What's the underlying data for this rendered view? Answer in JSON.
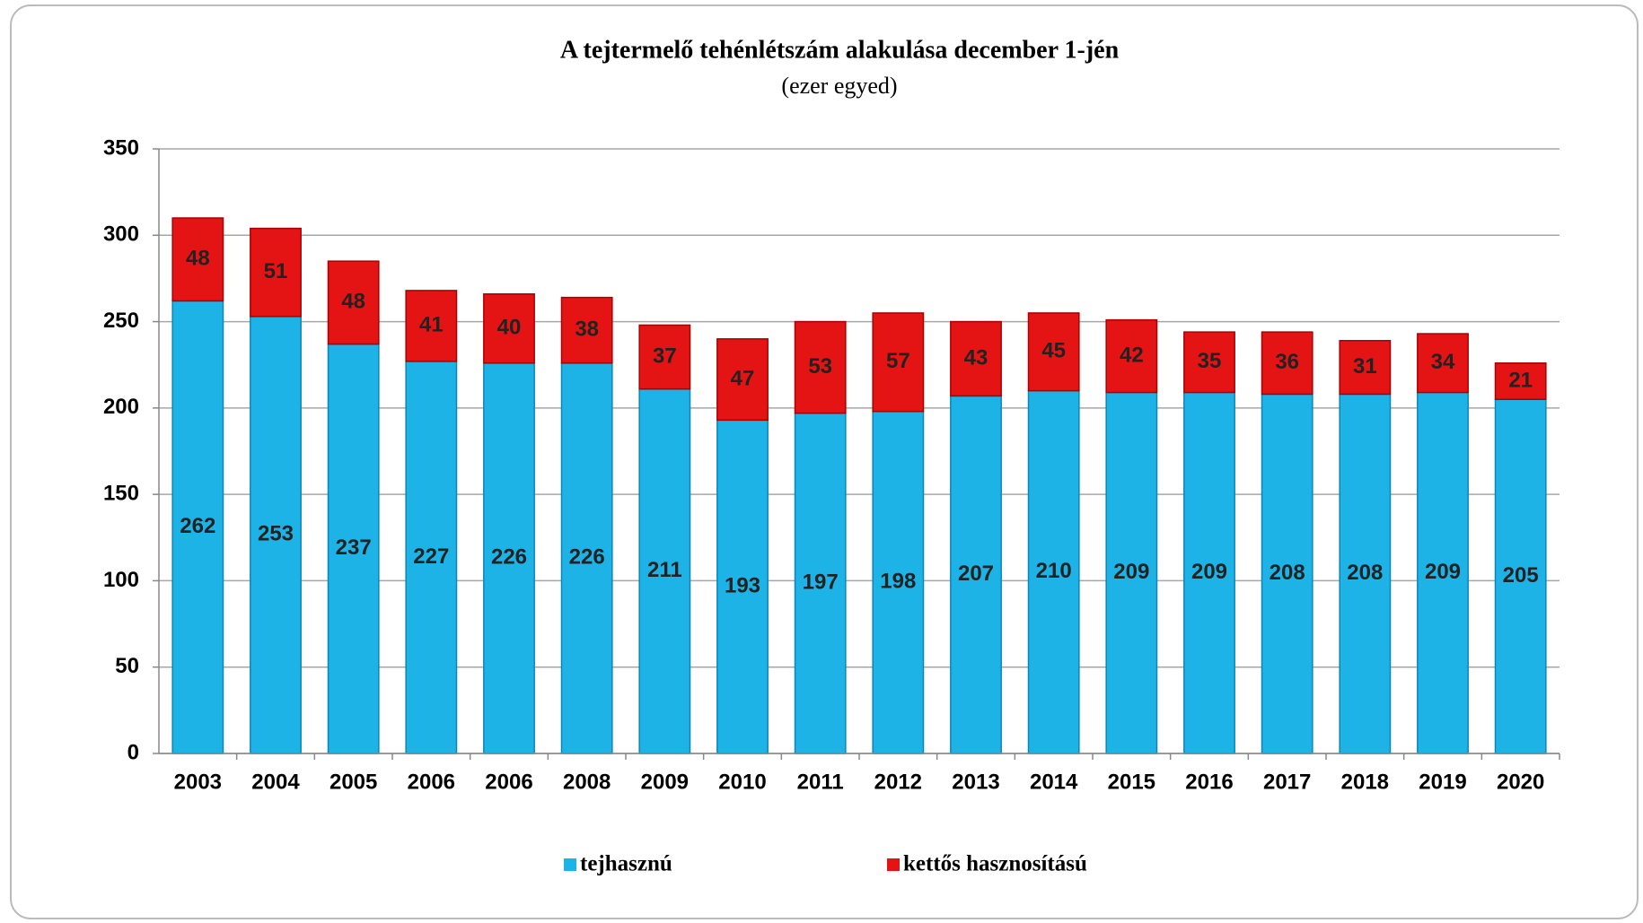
{
  "chart_data": {
    "type": "stacked_bar",
    "title": "A tejtermelő tehénlétszám alakulása december 1-jén",
    "subtitle": "(ezer egyed)",
    "categories": [
      "2003",
      "2004",
      "2005",
      "2006",
      "2006",
      "2008",
      "2009",
      "2010",
      "2011",
      "2012",
      "2013",
      "2014",
      "2015",
      "2016",
      "2017",
      "2018",
      "2019",
      "2020"
    ],
    "series": [
      {
        "name": "tejhasznú",
        "color": "#1db3e6",
        "values": [
          262,
          253,
          237,
          227,
          226,
          226,
          211,
          193,
          197,
          198,
          207,
          210,
          209,
          209,
          208,
          208,
          209,
          205
        ]
      },
      {
        "name": "kettős hasznosítású",
        "color": "#e41414",
        "values": [
          48,
          51,
          48,
          41,
          40,
          38,
          37,
          47,
          53,
          57,
          43,
          45,
          42,
          35,
          36,
          31,
          34,
          21
        ]
      }
    ],
    "ylim": [
      0,
      350
    ],
    "yticks": [
      0,
      50,
      100,
      150,
      200,
      250,
      300,
      350
    ],
    "grid": true,
    "legend": "bottom"
  }
}
